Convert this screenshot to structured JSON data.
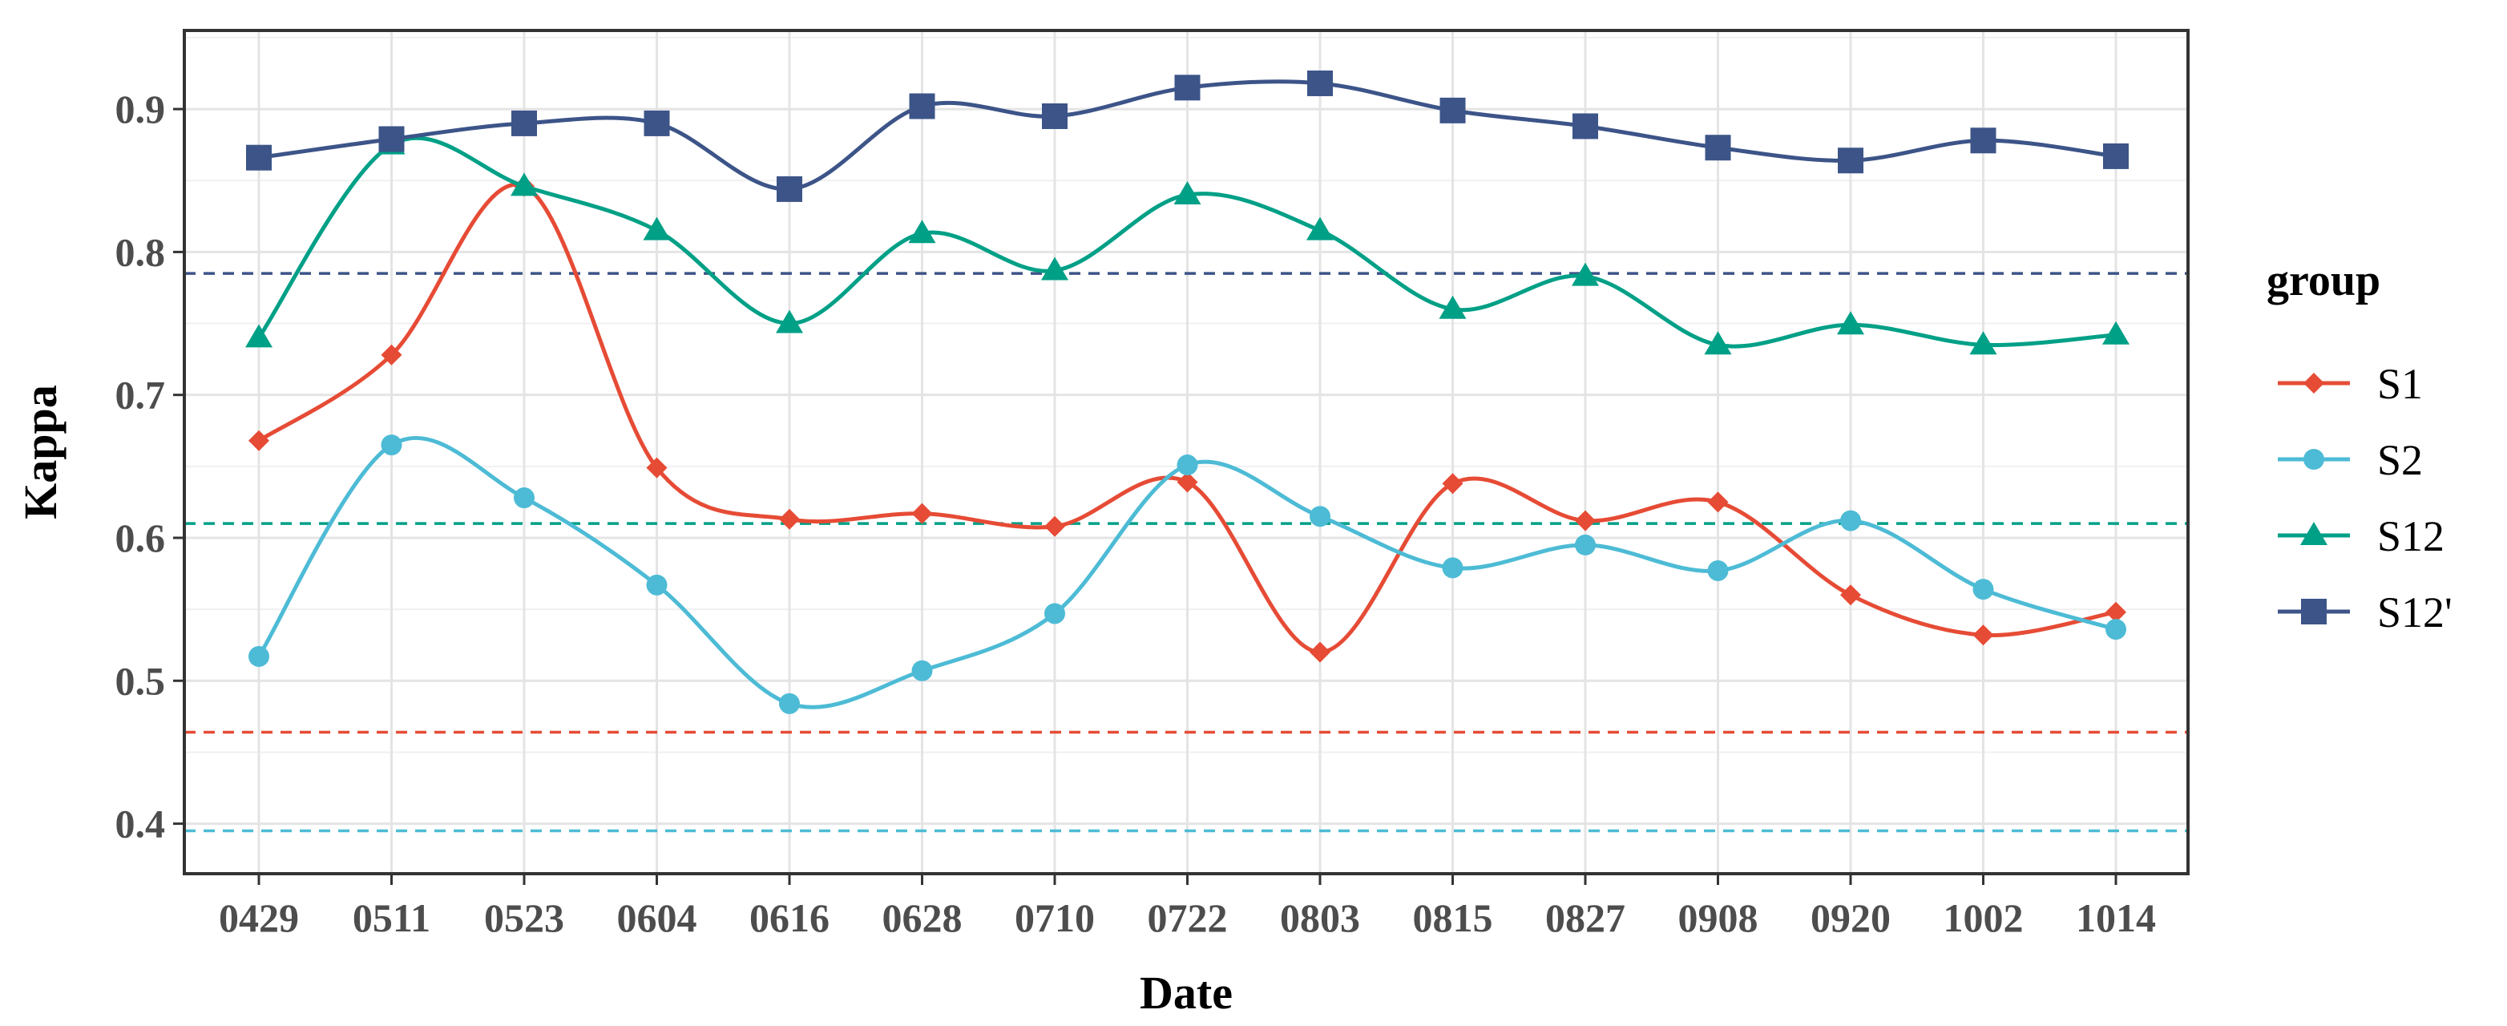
{
  "chart_data": {
    "type": "line",
    "title": "",
    "xlabel": "Date",
    "ylabel": "Kappa",
    "categories": [
      "0429",
      "0511",
      "0523",
      "0604",
      "0616",
      "0628",
      "0710",
      "0722",
      "0803",
      "0815",
      "0827",
      "0908",
      "0920",
      "1002",
      "1014"
    ],
    "ylim": [
      0.365,
      0.955
    ],
    "yticks": [
      "0.4",
      "0.5",
      "0.6",
      "0.7",
      "0.8",
      "0.9"
    ],
    "grid": true,
    "legend": {
      "title": "group",
      "position": "right"
    },
    "series": [
      {
        "name": "S1",
        "color": "#E64B35",
        "marker": "diamond",
        "values": [
          0.668,
          0.728,
          0.846,
          0.649,
          0.613,
          0.617,
          0.608,
          0.639,
          0.52,
          0.638,
          0.612,
          0.625,
          0.56,
          0.532,
          0.548
        ]
      },
      {
        "name": "S2",
        "color": "#4DBBD5",
        "marker": "circle",
        "values": [
          0.517,
          0.665,
          0.628,
          0.567,
          0.484,
          0.507,
          0.547,
          0.651,
          0.615,
          0.579,
          0.595,
          0.577,
          0.612,
          0.564,
          0.536
        ]
      },
      {
        "name": "S12",
        "color": "#00A087",
        "marker": "triangle",
        "values": [
          0.74,
          0.875,
          0.846,
          0.815,
          0.75,
          0.813,
          0.787,
          0.84,
          0.815,
          0.76,
          0.783,
          0.735,
          0.749,
          0.735,
          0.742
        ]
      },
      {
        "name": "S12'",
        "color": "#3C5488",
        "marker": "square",
        "values": [
          0.866,
          0.879,
          0.89,
          0.89,
          0.844,
          0.902,
          0.895,
          0.915,
          0.918,
          0.899,
          0.888,
          0.873,
          0.864,
          0.878,
          0.867
        ]
      }
    ],
    "reference_lines": [
      {
        "value": 0.785,
        "color": "#3C5488"
      },
      {
        "value": 0.61,
        "color": "#00A087"
      },
      {
        "value": 0.464,
        "color": "#E64B35"
      },
      {
        "value": 0.395,
        "color": "#4DBBD5"
      }
    ]
  }
}
